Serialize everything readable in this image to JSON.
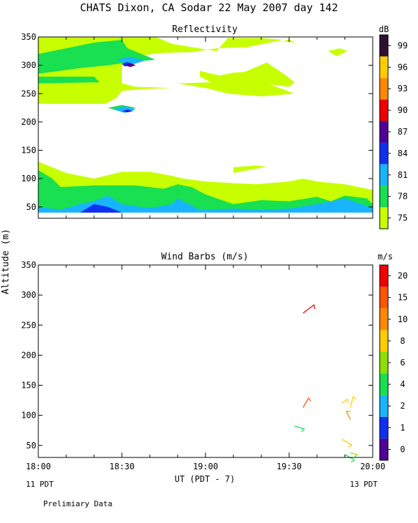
{
  "chart_data": [
    {
      "type": "heatmap",
      "title": "CHATS Dixon, CA  Sodar  22 May 2007  day 142",
      "subtitle": "Reflectivity",
      "ylabel": "Altitude (m)",
      "ylim": [
        30,
        350
      ],
      "yticks": [
        50,
        100,
        150,
        200,
        250,
        300,
        350
      ],
      "xlim": [
        0,
        120
      ],
      "colorbar": {
        "unit": "dB",
        "levels": [
          75,
          78,
          81,
          84,
          87,
          90,
          93,
          96,
          99
        ],
        "colors": [
          "#c8ff00",
          "#18e050",
          "#18b4ff",
          "#1030f0",
          "#500098",
          "#f00000",
          "#ff8800",
          "#ffcc00",
          "#301030"
        ]
      },
      "regions": [
        {
          "level": 75,
          "points": [
            [
              0,
              350
            ],
            [
              30,
              350
            ],
            [
              42,
              350
            ],
            [
              48,
              338
            ],
            [
              55,
              332
            ],
            [
              64,
              325
            ],
            [
              68,
              348
            ],
            [
              80,
              348
            ],
            [
              88,
              345
            ],
            [
              75,
              332
            ],
            [
              64,
              330
            ],
            [
              55,
              323
            ],
            [
              45,
              322
            ],
            [
              38,
              318
            ],
            [
              33,
              310
            ],
            [
              30,
              298
            ],
            [
              30,
              268
            ],
            [
              35,
              262
            ],
            [
              48,
              260
            ],
            [
              38,
              258
            ],
            [
              30,
              255
            ],
            [
              28,
              242
            ],
            [
              24,
              232
            ],
            [
              0,
              232
            ]
          ]
        },
        {
          "level": 75,
          "points": [
            [
              58,
              290
            ],
            [
              65,
              282
            ],
            [
              70,
              287
            ],
            [
              80,
              290
            ],
            [
              82,
              268
            ],
            [
              92,
              250
            ],
            [
              80,
              245
            ],
            [
              68,
              250
            ],
            [
              60,
              260
            ],
            [
              50,
              268
            ],
            [
              62,
              270
            ],
            [
              58,
              280
            ]
          ]
        },
        {
          "level": 75,
          "points": [
            [
              82,
              305
            ],
            [
              88,
              285
            ],
            [
              92,
              270
            ],
            [
              90,
              262
            ],
            [
              80,
              268
            ],
            [
              70,
              280
            ]
          ]
        },
        {
          "level": 75,
          "points": [
            [
              0,
              130
            ],
            [
              5,
              120
            ],
            [
              10,
              110
            ],
            [
              20,
              100
            ],
            [
              30,
              112
            ],
            [
              40,
              112
            ],
            [
              48,
              105
            ],
            [
              52,
              100
            ],
            [
              60,
              95
            ],
            [
              70,
              92
            ],
            [
              78,
              90
            ],
            [
              90,
              95
            ],
            [
              95,
              100
            ],
            [
              100,
              95
            ],
            [
              110,
              90
            ],
            [
              120,
              80
            ],
            [
              120,
              45
            ],
            [
              0,
              45
            ]
          ]
        },
        {
          "level": 75,
          "points": [
            [
              70,
              120
            ],
            [
              78,
              123
            ],
            [
              82,
              121
            ],
            [
              70,
              110
            ]
          ]
        },
        {
          "level": 75,
          "points": [
            [
              88,
              342
            ],
            [
              90,
              346
            ],
            [
              92,
              340
            ]
          ]
        },
        {
          "level": 75,
          "points": [
            [
              104,
              325
            ],
            [
              108,
              330
            ],
            [
              111,
              325
            ],
            [
              107,
              316
            ]
          ]
        },
        {
          "level": 78,
          "points": [
            [
              0,
              320
            ],
            [
              10,
              330
            ],
            [
              20,
              340
            ],
            [
              30,
              345
            ],
            [
              32,
              330
            ],
            [
              38,
              318
            ],
            [
              42,
              310
            ],
            [
              32,
              305
            ],
            [
              25,
              300
            ],
            [
              15,
              295
            ],
            [
              0,
              285
            ]
          ]
        },
        {
          "level": 78,
          "points": [
            [
              0,
              280
            ],
            [
              20,
              280
            ],
            [
              22,
              270
            ],
            [
              0,
              268
            ]
          ]
        },
        {
          "level": 78,
          "points": [
            [
              25,
              225
            ],
            [
              30,
              230
            ],
            [
              35,
              225
            ],
            [
              30,
              218
            ]
          ]
        },
        {
          "level": 78,
          "points": [
            [
              0,
              115
            ],
            [
              5,
              100
            ],
            [
              8,
              85
            ],
            [
              20,
              88
            ],
            [
              35,
              88
            ],
            [
              45,
              82
            ],
            [
              50,
              90
            ],
            [
              55,
              85
            ],
            [
              60,
              72
            ],
            [
              70,
              55
            ],
            [
              80,
              62
            ],
            [
              90,
              60
            ],
            [
              100,
              68
            ],
            [
              105,
              60
            ],
            [
              110,
              70
            ],
            [
              118,
              65
            ],
            [
              120,
              55
            ],
            [
              120,
              45
            ],
            [
              0,
              45
            ]
          ]
        },
        {
          "level": 81,
          "points": [
            [
              28,
              310
            ],
            [
              33,
              315
            ],
            [
              38,
              308
            ],
            [
              33,
              300
            ]
          ]
        },
        {
          "level": 81,
          "points": [
            [
              27,
              222
            ],
            [
              31,
              228
            ],
            [
              35,
              222
            ],
            [
              31,
              216
            ]
          ]
        },
        {
          "level": 81,
          "points": [
            [
              0,
              50
            ],
            [
              8,
              45
            ],
            [
              15,
              55
            ],
            [
              20,
              60
            ],
            [
              25,
              70
            ],
            [
              30,
              55
            ],
            [
              40,
              48
            ],
            [
              48,
              55
            ],
            [
              50,
              65
            ],
            [
              58,
              45
            ],
            [
              70,
              47
            ],
            [
              80,
              45
            ],
            [
              90,
              47
            ],
            [
              100,
              55
            ],
            [
              110,
              65
            ],
            [
              120,
              48
            ],
            [
              120,
              40
            ],
            [
              0,
              40
            ]
          ]
        },
        {
          "level": 84,
          "points": [
            [
              30,
              303
            ],
            [
              32,
              306
            ],
            [
              34,
              301
            ],
            [
              31,
              298
            ]
          ]
        },
        {
          "level": 84,
          "points": [
            [
              30,
              219
            ],
            [
              32,
              222
            ],
            [
              34,
              219
            ],
            [
              32,
              217
            ]
          ]
        },
        {
          "level": 84,
          "points": [
            [
              15,
              40
            ],
            [
              20,
              55
            ],
            [
              25,
              50
            ],
            [
              30,
              40
            ]
          ]
        },
        {
          "level": 87,
          "points": [
            [
              31,
              300
            ],
            [
              33,
              304
            ],
            [
              35,
              300
            ],
            [
              33,
              297
            ]
          ]
        },
        {
          "level": 87,
          "points": [
            [
              31,
              219
            ],
            [
              32,
              220
            ],
            [
              33,
              219
            ],
            [
              32,
              218
            ]
          ]
        }
      ]
    },
    {
      "type": "scatter",
      "subtitle": "Wind Barbs (m/s)",
      "ylabel": "Altitude (m)",
      "xlabel": "UT  (PDT - 7)",
      "ylim": [
        30,
        350
      ],
      "yticks": [
        50,
        100,
        150,
        200,
        250,
        300,
        350
      ],
      "xlim": [
        0,
        120
      ],
      "x_ticks": [
        {
          "pos": 0,
          "label": "18:00"
        },
        {
          "pos": 30,
          "label": "18:30"
        },
        {
          "pos": 60,
          "label": "19:00"
        },
        {
          "pos": 90,
          "label": "19:30"
        },
        {
          "pos": 120,
          "label": "20:00"
        }
      ],
      "x_minor_ticks": [
        10,
        20,
        40,
        50,
        70,
        80,
        100,
        110
      ],
      "date_left": "11 PDT",
      "date_right": "13 PDT",
      "footer": "Prelimiary Data",
      "colorbar": {
        "unit": "m/s",
        "levels": [
          0,
          1,
          2,
          4,
          6,
          8,
          10,
          15,
          20
        ],
        "colors": [
          "#500098",
          "#1030f0",
          "#18b4ff",
          "#18e050",
          "#8be000",
          "#ffcc00",
          "#ff8800",
          "#ff5500",
          "#f00000"
        ]
      },
      "barbs": [
        {
          "x": 95,
          "y": 270,
          "speed": 20,
          "dx": 16,
          "dy": -12
        },
        {
          "x": 95,
          "y": 113,
          "speed": 15,
          "dx": 8,
          "dy": -14
        },
        {
          "x": 92,
          "y": 82,
          "speed": 4,
          "dx": 14,
          "dy": 4
        },
        {
          "x": 109,
          "y": 120,
          "speed": 8,
          "dx": 8,
          "dy": -6
        },
        {
          "x": 112,
          "y": 113,
          "speed": 8,
          "dx": 4,
          "dy": -16
        },
        {
          "x": 112,
          "y": 93,
          "speed": 10,
          "dx": -6,
          "dy": -12
        },
        {
          "x": 109,
          "y": 60,
          "speed": 8,
          "dx": 14,
          "dy": 8
        },
        {
          "x": 110,
          "y": 35,
          "speed": 4,
          "dx": 14,
          "dy": 8
        },
        {
          "x": 112,
          "y": 38,
          "speed": 6,
          "dx": 10,
          "dy": 3
        },
        {
          "x": 123,
          "y": 137,
          "speed": 6,
          "dx": 5,
          "dy": -6
        }
      ]
    }
  ]
}
